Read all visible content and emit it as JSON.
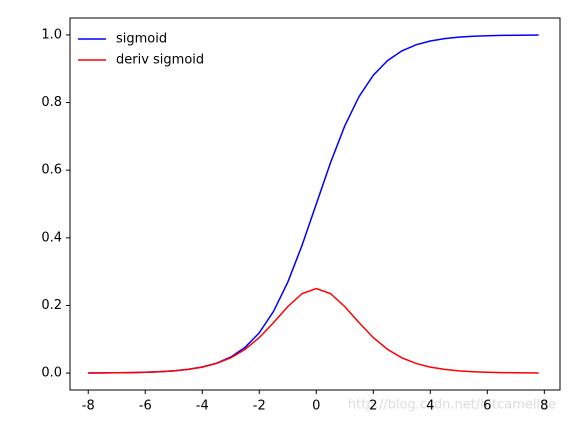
{
  "chart_data": {
    "type": "line",
    "x": [
      -8,
      -7.5,
      -7,
      -6.5,
      -6,
      -5.5,
      -5,
      -4.5,
      -4,
      -3.5,
      -3,
      -2.5,
      -2,
      -1.5,
      -1,
      -0.5,
      0,
      0.5,
      1,
      1.5,
      2,
      2.5,
      3,
      3.5,
      4,
      4.5,
      5,
      5.5,
      6,
      6.5,
      7,
      7.5,
      7.8
    ],
    "series": [
      {
        "name": "sigmoid",
        "color": "#0000ff",
        "values": [
          0.0003,
          0.0006,
          0.0009,
          0.0015,
          0.0025,
          0.0041,
          0.0067,
          0.011,
          0.018,
          0.0293,
          0.0474,
          0.0759,
          0.1192,
          0.1824,
          0.2689,
          0.3775,
          0.5,
          0.6225,
          0.7311,
          0.8176,
          0.8808,
          0.9241,
          0.9526,
          0.9707,
          0.982,
          0.989,
          0.9933,
          0.9959,
          0.9975,
          0.9985,
          0.9991,
          0.9994,
          0.9996
        ]
      },
      {
        "name": "deriv sigmoid",
        "color": "#ff0000",
        "values": [
          0.0003,
          0.0006,
          0.0009,
          0.0015,
          0.0025,
          0.0041,
          0.0066,
          0.0109,
          0.0177,
          0.0285,
          0.0452,
          0.0701,
          0.105,
          0.1491,
          0.1966,
          0.235,
          0.25,
          0.235,
          0.1966,
          0.1491,
          0.105,
          0.0701,
          0.0452,
          0.0285,
          0.0177,
          0.0109,
          0.0066,
          0.0041,
          0.0025,
          0.0015,
          0.0009,
          0.0006,
          0.0004
        ]
      }
    ],
    "xlim": [
      -8.64,
      8.55
    ],
    "ylim": [
      -0.05,
      1.05
    ],
    "xticks": [
      -8,
      -6,
      -4,
      -2,
      0,
      2,
      4,
      6,
      8
    ],
    "yticks": [
      {
        "value": 0,
        "label": "0.0"
      },
      {
        "value": 0.2,
        "label": "0.2"
      },
      {
        "value": 0.4,
        "label": "0.4"
      },
      {
        "value": 0.6,
        "label": "0.6"
      },
      {
        "value": 0.8,
        "label": "0.8"
      },
      {
        "value": 1,
        "label": "1.0"
      }
    ],
    "legend": "upper left",
    "watermark": "http://blog.csdn.net/hitcamellee"
  }
}
